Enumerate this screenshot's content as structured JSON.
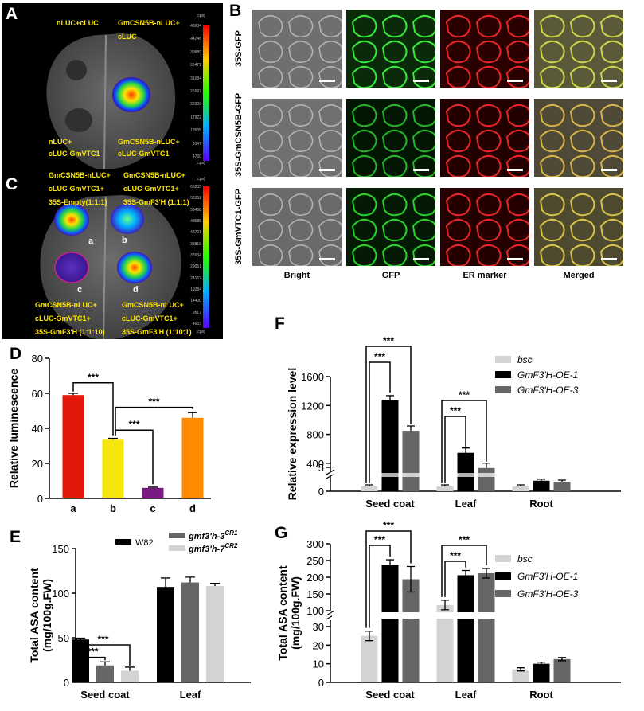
{
  "panel_a": {
    "label": "A",
    "top_left": "nLUC+cLUC",
    "top_right_1": "GmCSN5B-nLUC+",
    "top_right_2": "cLUC",
    "bottom_left_1": "nLUC+",
    "bottom_left_2": "cLUC-GmVTC1",
    "bottom_right_1": "GmCSN5B-nLUC+",
    "bottom_right_2": "cLUC-GmVTC1",
    "scale_unit_top": "[cps]",
    "scale_unit_bottom": "[cps]",
    "scale_ticks": [
      "48604",
      "44246",
      "39889",
      "35472",
      "31084",
      "26697",
      "22309",
      "17922",
      "13535",
      "9147",
      "4760"
    ]
  },
  "panel_b": {
    "label": "B",
    "rows": [
      "35S-GFP",
      "35S-GmCSN5B-GFP",
      "35S-GmVTC1-GFP"
    ],
    "columns": [
      "Bright",
      "GFP",
      "ER marker",
      "Merged"
    ]
  },
  "panel_c": {
    "label": "C",
    "tl_1": "GmCSN5B-nLUC+",
    "tl_2": "cLUC-GmVTC1+",
    "tl_3": "35S-Empty(1:1:1)",
    "tr_1": "GmCSN5B-nLUC+",
    "tr_2": "cLUC-GmVTC1+",
    "tr_3": "35S-GmF3'H (1:1:1)",
    "bl_1": "GmCSN5B-nLUC+",
    "bl_2": "cLUC-GmVTC1+",
    "bl_3": "35S-GmF3'H (1:1:10)",
    "br_1": "GmCSN5B-nLUC+",
    "br_2": "cLUC-GmVTC1+",
    "br_3": "35S-GmF3'H (1:10:1)",
    "spot_a": "a",
    "spot_b": "b",
    "spot_c": "c",
    "spot_d": "d",
    "scale_unit_top": "[cps]",
    "scale_unit_bottom": "[cps]",
    "scale_ticks": [
      "63235",
      "58352",
      "53468",
      "48585",
      "43701",
      "38818",
      "33934",
      "29051",
      "24167",
      "19284",
      "14400",
      "9517",
      "4633"
    ]
  },
  "panel_d": {
    "label": "D",
    "chart_data": {
      "type": "bar",
      "categories": [
        "a",
        "b",
        "c",
        "d"
      ],
      "values": [
        59,
        33.5,
        6,
        46
      ],
      "errors": [
        1,
        0.8,
        0.4,
        3
      ],
      "colors": [
        "#e3170a",
        "#f5e60c",
        "#7a1a82",
        "#ff8a00"
      ],
      "ylabel": "Relative luminescence",
      "ylim": [
        0,
        80
      ],
      "yticks": [
        "0",
        "20",
        "40",
        "60",
        "80"
      ],
      "sig": "***"
    }
  },
  "panel_e": {
    "label": "E",
    "chart_data": {
      "type": "bar",
      "categories": [
        "Seed coat",
        "Leaf"
      ],
      "series": [
        {
          "name": "W82",
          "values": [
            48,
            107
          ],
          "errors": [
            1.5,
            10
          ],
          "color": "#000000"
        },
        {
          "name": "gmf3'h-3",
          "sup": "CR1",
          "values": [
            19,
            112
          ],
          "errors": [
            4,
            6
          ],
          "color": "#666666"
        },
        {
          "name": "gmf3'h-7",
          "sup": "CR2",
          "values": [
            13,
            108
          ],
          "errors": [
            4,
            3
          ],
          "color": "#d3d3d3"
        }
      ],
      "ylabel_1": "Total ASA content",
      "ylabel_2": "(mg/100g.FW)",
      "ylim": [
        0,
        150
      ],
      "yticks": [
        "0",
        "50",
        "100",
        "150"
      ],
      "sig": "***"
    }
  },
  "panel_f": {
    "label": "F",
    "chart_data": {
      "type": "bar",
      "categories": [
        "Seed coat",
        "Leaf",
        "Root"
      ],
      "series": [
        {
          "name": "bsc",
          "values": [
            1,
            1,
            1
          ],
          "color": "#d3d3d3"
        },
        {
          "name": "GmF3'H-OE-1",
          "values": [
            1270,
            545,
            2.2
          ],
          "color": "#000000"
        },
        {
          "name": "GmF3'H-OE-3",
          "values": [
            850,
            335,
            2.0
          ],
          "color": "#666666"
        }
      ],
      "ylabel": "Relative expression level",
      "yticks_upper": [
        "400",
        "800",
        "1200",
        "1600"
      ],
      "yticks_lower": [
        "0",
        "5"
      ],
      "sig": "***"
    }
  },
  "panel_g": {
    "label": "G",
    "chart_data": {
      "type": "bar",
      "categories": [
        "Seed coat",
        "Leaf",
        "Root"
      ],
      "series": [
        {
          "name": "bsc",
          "values": [
            25,
            117,
            7
          ],
          "color": "#d3d3d3"
        },
        {
          "name": "GmF3'H-OE-1",
          "values": [
            238,
            206,
            10
          ],
          "color": "#000000"
        },
        {
          "name": "GmF3'H-OE-3",
          "values": [
            194,
            212,
            12.5
          ],
          "color": "#666666"
        }
      ],
      "ylabel_1": "Total ASA content",
      "ylabel_2": "(mg/100g.FW)",
      "yticks_upper": [
        "100",
        "150",
        "200",
        "250",
        "300"
      ],
      "yticks_lower": [
        "0",
        "10",
        "20",
        "30"
      ],
      "sig": "***"
    }
  }
}
